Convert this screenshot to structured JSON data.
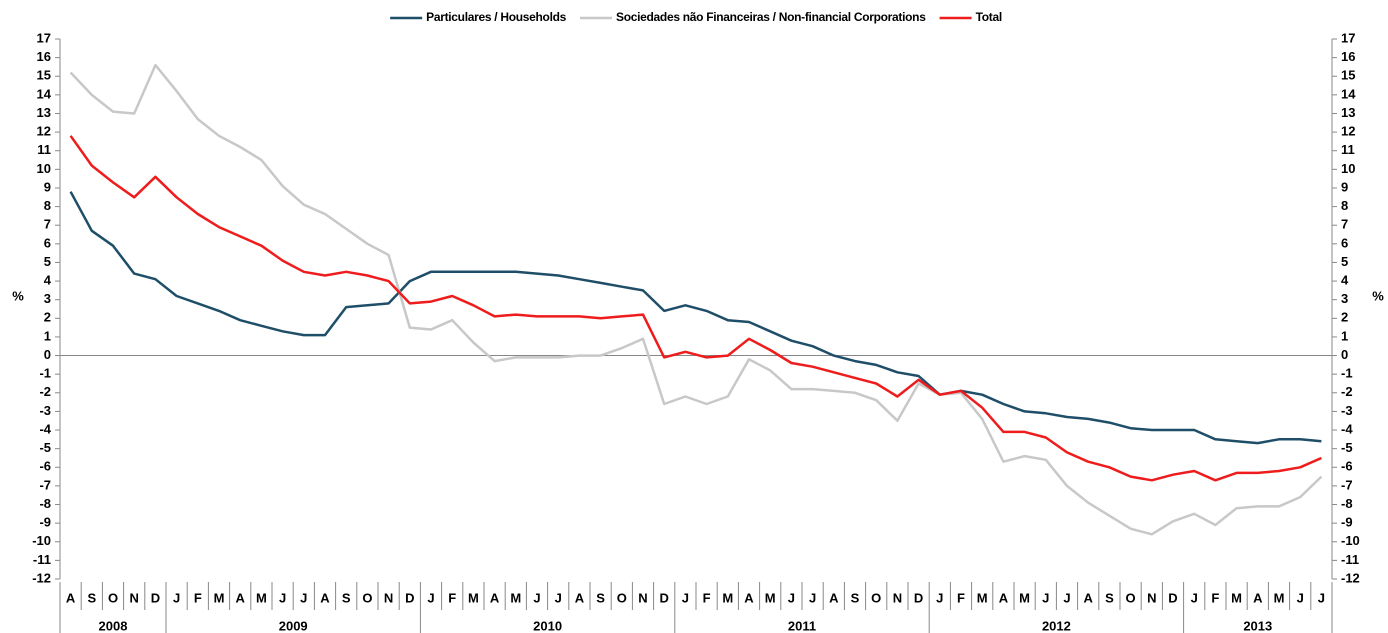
{
  "chart_data": {
    "type": "line",
    "y_label": "%",
    "categories": [
      "A",
      "S",
      "O",
      "N",
      "D",
      "J",
      "F",
      "M",
      "A",
      "M",
      "J",
      "J",
      "A",
      "S",
      "O",
      "N",
      "D",
      "J",
      "F",
      "M",
      "A",
      "M",
      "J",
      "J",
      "A",
      "S",
      "O",
      "N",
      "D",
      "J",
      "F",
      "M",
      "A",
      "M",
      "J",
      "J",
      "A",
      "S",
      "O",
      "N",
      "D",
      "J",
      "F",
      "M",
      "A",
      "M",
      "J",
      "J",
      "A",
      "S",
      "O",
      "N",
      "D",
      "J",
      "F",
      "M",
      "A",
      "M",
      "J",
      "J"
    ],
    "years": [
      "2008",
      "2009",
      "2010",
      "2011",
      "2012",
      "2013"
    ],
    "series": [
      {
        "name": "Particulares / Households",
        "color": "#1f4e68",
        "values": [
          8.8,
          6.7,
          5.9,
          4.4,
          4.1,
          3.2,
          2.8,
          2.4,
          1.9,
          1.6,
          1.3,
          1.1,
          1.1,
          2.6,
          2.7,
          2.8,
          4.0,
          4.5,
          4.5,
          4.5,
          4.5,
          4.5,
          4.4,
          4.3,
          4.1,
          3.9,
          3.7,
          3.5,
          2.4,
          2.7,
          2.4,
          1.9,
          1.8,
          1.3,
          0.8,
          0.5,
          0.0,
          -0.3,
          -0.5,
          -0.9,
          -1.1,
          -2.1,
          -1.9,
          -2.1,
          -2.6,
          -3.0,
          -3.1,
          -3.3,
          -3.4,
          -3.6,
          -3.9,
          -4.0,
          -4.0,
          -4.0,
          -4.5,
          -4.6,
          -4.7,
          -4.5,
          -4.5,
          -4.6
        ]
      },
      {
        "name": "Sociedades não Financeiras / Non-financial Corporations",
        "color": "#c8c8c8",
        "values": [
          15.2,
          14.0,
          13.1,
          13.0,
          15.6,
          14.2,
          12.7,
          11.8,
          11.2,
          10.5,
          9.1,
          8.1,
          7.6,
          6.8,
          6.0,
          5.4,
          1.5,
          1.4,
          1.9,
          0.7,
          -0.3,
          -0.1,
          -0.1,
          -0.1,
          0.0,
          0.0,
          0.4,
          0.9,
          -2.6,
          -2.2,
          -2.6,
          -2.2,
          -0.2,
          -0.8,
          -1.8,
          -1.8,
          -1.9,
          -2.0,
          -2.4,
          -3.5,
          -1.5,
          -2.1,
          -2.0,
          -3.4,
          -5.7,
          -5.4,
          -5.6,
          -7.0,
          -7.9,
          -8.6,
          -9.3,
          -9.6,
          -8.9,
          -8.5,
          -9.1,
          -8.2,
          -8.1,
          -8.1,
          -7.6,
          -6.5
        ]
      },
      {
        "name": "Total",
        "color": "#ee1c1c",
        "values": [
          11.8,
          10.2,
          9.3,
          8.5,
          9.6,
          8.5,
          7.6,
          6.9,
          6.4,
          5.9,
          5.1,
          4.5,
          4.3,
          4.5,
          4.3,
          4.0,
          2.8,
          2.9,
          3.2,
          2.7,
          2.1,
          2.2,
          2.1,
          2.1,
          2.1,
          2.0,
          2.1,
          2.2,
          -0.1,
          0.2,
          -0.1,
          0.0,
          0.9,
          0.3,
          -0.4,
          -0.6,
          -0.9,
          -1.2,
          -1.5,
          -2.2,
          -1.3,
          -2.1,
          -1.9,
          -2.8,
          -4.1,
          -4.1,
          -4.4,
          -5.2,
          -5.7,
          -6.0,
          -6.5,
          -6.7,
          -6.4,
          -6.2,
          -6.7,
          -6.3,
          -6.3,
          -6.2,
          -6.0,
          -5.5
        ]
      }
    ],
    "ylim": [
      -12,
      17
    ],
    "yticks": [
      -12,
      -11,
      -10,
      -9,
      -8,
      -7,
      -6,
      -5,
      -4,
      -3,
      -2,
      -1,
      0,
      1,
      2,
      3,
      4,
      5,
      6,
      7,
      8,
      9,
      10,
      11,
      12,
      13,
      14,
      15,
      16,
      17
    ],
    "legend": "top"
  }
}
